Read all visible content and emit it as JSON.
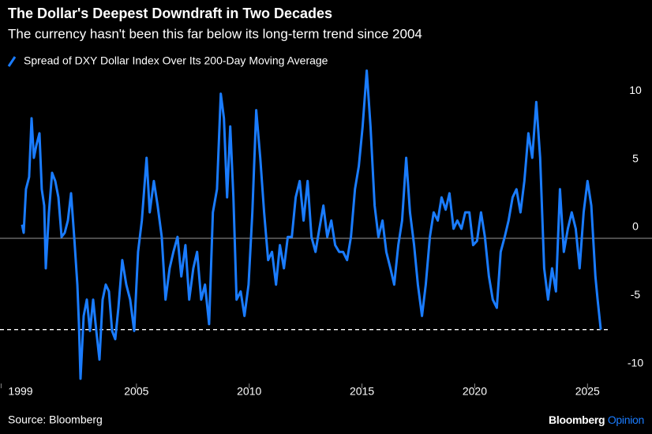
{
  "chart_data": {
    "type": "line",
    "title": "The Dollar's Deepest Downdraft in Two Decades",
    "subtitle": "The currency hasn't been this far below its long-term trend since 2004",
    "source": "Source: Bloomberg",
    "brand": "Bloomberg",
    "brand_suffix": "Opinion",
    "xlim": [
      1998.95,
      2026.6
    ],
    "xticks": [
      1999,
      2005,
      2010,
      2015,
      2020,
      2025
    ],
    "ylim": [
      -11,
      12.5
    ],
    "yticks": [
      -10,
      -5,
      0,
      5,
      10
    ],
    "zero_line": true,
    "reference_line": -6.7,
    "series": [
      {
        "name": "Spread of DXY Dollar Index Over Its 200-Day Moving Average",
        "color": "#1a7cff",
        "x": [
          1999.93,
          2000.0,
          2000.1,
          2000.24,
          2000.35,
          2000.45,
          2000.56,
          2000.7,
          2000.8,
          2000.91,
          2000.98,
          2001.12,
          2001.26,
          2001.4,
          2001.54,
          2001.68,
          2001.82,
          2001.96,
          2002.1,
          2002.24,
          2002.38,
          2002.45,
          2002.52,
          2002.66,
          2002.8,
          2002.94,
          2003.08,
          2003.22,
          2003.36,
          2003.5,
          2003.64,
          2003.78,
          2003.92,
          2004.06,
          2004.2,
          2004.37,
          2004.55,
          2004.72,
          2004.9,
          2005.07,
          2005.24,
          2005.45,
          2005.59,
          2005.77,
          2005.94,
          2006.12,
          2006.29,
          2006.47,
          2006.64,
          2006.82,
          2006.99,
          2007.17,
          2007.34,
          2007.52,
          2007.69,
          2007.87,
          2008.04,
          2008.22,
          2008.39,
          2008.57,
          2008.74,
          2008.88,
          2009.02,
          2009.16,
          2009.3,
          2009.44,
          2009.62,
          2009.79,
          2009.97,
          2010.14,
          2010.31,
          2010.49,
          2010.66,
          2010.84,
          2011.01,
          2011.19,
          2011.36,
          2011.54,
          2011.71,
          2011.89,
          2012.06,
          2012.24,
          2012.41,
          2012.59,
          2012.76,
          2012.94,
          2013.11,
          2013.29,
          2013.46,
          2013.64,
          2013.81,
          2013.99,
          2014.16,
          2014.34,
          2014.51,
          2014.69,
          2014.86,
          2015.03,
          2015.21,
          2015.38,
          2015.56,
          2015.73,
          2015.91,
          2016.08,
          2016.26,
          2016.43,
          2016.61,
          2016.78,
          2016.96,
          2017.13,
          2017.31,
          2017.48,
          2017.66,
          2017.83,
          2018.01,
          2018.18,
          2018.36,
          2018.53,
          2018.71,
          2018.88,
          2019.06,
          2019.23,
          2019.41,
          2019.58,
          2019.76,
          2019.93,
          2020.1,
          2020.28,
          2020.45,
          2020.63,
          2020.8,
          2020.98,
          2021.15,
          2021.33,
          2021.5,
          2021.68,
          2021.85,
          2022.03,
          2022.2,
          2022.38,
          2022.55,
          2022.73,
          2022.9,
          2023.08,
          2023.25,
          2023.43,
          2023.6,
          2023.78,
          2023.95,
          2024.13,
          2024.3,
          2024.48,
          2024.65,
          2024.83,
          2025.0,
          2025.17,
          2025.35,
          2025.45,
          2025.59
        ],
        "values": [
          1.0,
          0.4,
          3.6,
          4.5,
          8.8,
          5.9,
          6.8,
          7.7,
          3.6,
          2.4,
          -2.2,
          1.9,
          4.8,
          4.2,
          3.0,
          0.1,
          0.4,
          1.3,
          3.3,
          0.1,
          -3.4,
          -6.3,
          -10.3,
          -5.7,
          -4.5,
          -6.8,
          -4.5,
          -6.8,
          -8.9,
          -4.5,
          -3.4,
          -3.9,
          -6.8,
          -7.4,
          -5.1,
          -1.6,
          -3.4,
          -4.5,
          -6.8,
          -1.0,
          1.3,
          5.9,
          1.9,
          4.2,
          2.4,
          0.1,
          -4.5,
          -2.2,
          -1.0,
          0.1,
          -2.8,
          -0.5,
          -4.5,
          -2.2,
          -1.0,
          -4.5,
          -3.4,
          -6.3,
          1.9,
          3.6,
          10.6,
          8.8,
          3.0,
          8.2,
          3.0,
          -4.5,
          -3.9,
          -5.7,
          -3.4,
          1.9,
          9.4,
          5.9,
          1.9,
          -1.6,
          -1.0,
          -3.4,
          -0.5,
          -2.2,
          0.1,
          0.1,
          3.0,
          4.2,
          1.3,
          4.2,
          0.1,
          -1.0,
          0.7,
          2.4,
          0.1,
          1.3,
          -0.5,
          -1.0,
          -1.0,
          -1.6,
          0.1,
          3.6,
          5.3,
          8.2,
          12.3,
          8.2,
          2.4,
          0.1,
          1.3,
          -1.0,
          -2.2,
          -3.4,
          -0.5,
          1.3,
          5.9,
          1.9,
          -0.5,
          -3.4,
          -5.7,
          -3.4,
          0.1,
          1.9,
          1.3,
          3.0,
          2.1,
          3.3,
          0.7,
          1.3,
          0.7,
          1.9,
          1.9,
          -0.5,
          -0.2,
          1.9,
          0.1,
          -2.8,
          -4.5,
          -5.1,
          -1.0,
          0.1,
          1.3,
          3.0,
          3.6,
          1.9,
          4.2,
          7.7,
          5.9,
          10.0,
          5.9,
          -2.2,
          -4.5,
          -2.2,
          -3.9,
          3.6,
          -1.0,
          0.7,
          1.9,
          0.7,
          -2.2,
          1.9,
          4.2,
          2.4,
          -2.8,
          -4.5,
          -6.7
        ]
      }
    ]
  }
}
